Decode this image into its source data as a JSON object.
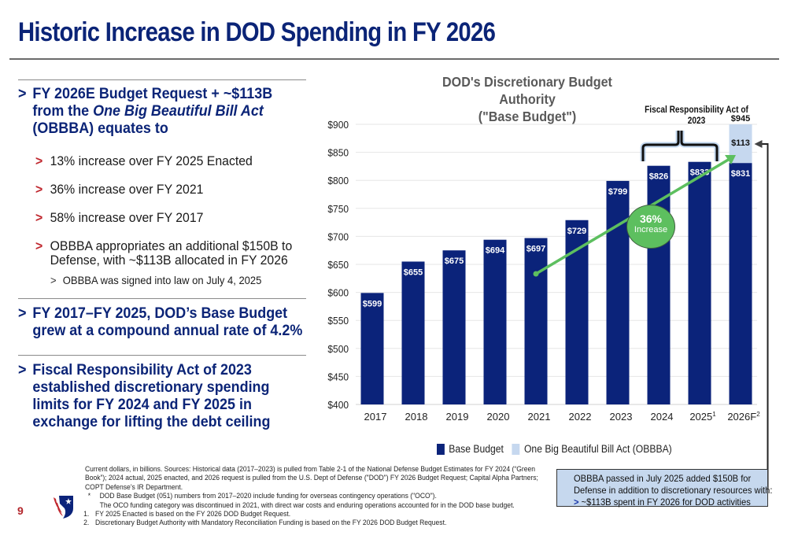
{
  "slide": {
    "title": "Historic Increase in DOD Spending in FY 2026",
    "page_number": "9"
  },
  "left_panel": {
    "bullet1": {
      "marker": ">",
      "line1": "FY 2026E Budget Request + ~$113B",
      "line2_prefix": "from the ",
      "line2_italic": "One Big Beautiful Bill Act",
      "line3": "(OBBBA) equates to",
      "subbullets": [
        {
          "marker": ">",
          "text": "13% increase over FY 2025 Enacted"
        },
        {
          "marker": ">",
          "text": "36% increase over FY 2021"
        },
        {
          "marker": ">",
          "text": "58% increase over FY 2017"
        },
        {
          "marker": ">",
          "text": "OBBBA appropriates an additional $150B to Defense, with ~$113B allocated in FY 2026"
        }
      ],
      "subsub": {
        "marker": ">",
        "text": "OBBBA was signed into law on July 4, 2025"
      }
    },
    "bullet2": {
      "marker": ">",
      "text": "FY 2017–FY 2025, DOD’s Base Budget grew at a compound annual rate of 4.2%"
    },
    "bullet3": {
      "marker": ">",
      "text": "Fiscal Responsibility Act of 2023 established discretionary spending limits for FY 2024 and FY 2025 in exchange for lifting the debt ceiling"
    }
  },
  "chart_data": {
    "type": "bar",
    "stacked": true,
    "title": "DOD's Discretionary Budget Authority",
    "subtitle": "(\"Base Budget\")",
    "xlabel": "",
    "ylabel": "",
    "ylim": [
      400,
      900
    ],
    "yticks": [
      400,
      450,
      500,
      550,
      600,
      650,
      700,
      750,
      800,
      850,
      900
    ],
    "ytick_labels": [
      "$400",
      "$450",
      "$500",
      "$550",
      "$600",
      "$650",
      "$700",
      "$750",
      "$800",
      "$850",
      "$900"
    ],
    "grid": true,
    "categories": [
      "2017",
      "2018",
      "2019",
      "2020",
      "2021",
      "2022",
      "2023",
      "2024",
      "2025",
      "2026F"
    ],
    "category_superscripts": [
      "",
      "",
      "",
      "",
      "",
      "",
      "",
      "",
      "1",
      "2"
    ],
    "series": [
      {
        "name": "Base Budget",
        "color": "#0b237a",
        "values": [
          599,
          655,
          675,
          694,
          697,
          729,
          799,
          826,
          833,
          831
        ],
        "labels": [
          "$599",
          "$655",
          "$675",
          "$694",
          "$697",
          "$729",
          "$799",
          "$826",
          "$833",
          "$831"
        ]
      },
      {
        "name": "One Big Beautiful Bill Act (OBBBA)",
        "color": "#c6d8ef",
        "values": [
          0,
          0,
          0,
          0,
          0,
          0,
          0,
          0,
          0,
          113
        ],
        "labels": [
          "",
          "",
          "",
          "",
          "",
          "",
          "",
          "",
          "",
          "$113"
        ]
      }
    ],
    "total_labels": [
      "",
      "",
      "",
      "",
      "",
      "",
      "",
      "",
      "",
      "$945"
    ],
    "legend_position": "bottom",
    "annotations": {
      "bracket_label": "Fiscal Responsibility Act of 2023",
      "bracket_categories": [
        "2024",
        "2025"
      ],
      "growth_arrow": {
        "from_category": "2021",
        "to_category": "2026F",
        "label_big": "36%",
        "label_small": "Increase",
        "color": "#5dbf5f"
      }
    }
  },
  "callout": {
    "line1": "OBBBA passed in July 2025 added $150B for",
    "line2": "Defense in addition to discretionary resources with:",
    "line3_marker": ">",
    "line3": "~$113B spent in FY 2026 for DOD activities"
  },
  "footnotes": {
    "source": "Current dollars, in billions. Sources: Historical data (2017–2023) is pulled from Table 2-1 of the National Defense Budget Estimates for FY 2024 (“Green Book”); 2024 actual, 2025 enacted, and 2026 request is pulled from the U.S. Dept of Defense (\"DOD\") FY 2026 Budget Request; Capital Alpha Partners; COPT Defense’s IR Department.",
    "items": [
      {
        "marker": "*",
        "text": "DOD Base Budget (051) numbers from 2017–2020 include funding for overseas contingency operations (\"OCO\")."
      },
      {
        "marker": "",
        "text": "The OCO funding category was discontinued in 2021, with direct war costs and enduring operations accounted for in the DOD base budget."
      },
      {
        "marker": "1.",
        "text": "FY 2025 Enacted is based on the FY 2026 DOD Budget Request."
      },
      {
        "marker": "2.",
        "text": "Discretionary Budget Authority with Mandatory Reconciliation Funding is based on the FY 2026 DOD Budget Request."
      }
    ]
  }
}
